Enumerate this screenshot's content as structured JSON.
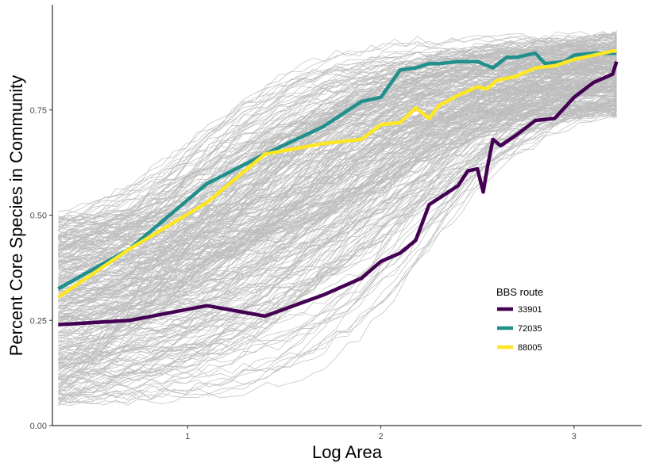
{
  "chart_data": {
    "type": "line",
    "title": "",
    "xlabel": "Log Area",
    "ylabel": "Percent Core Species in Community",
    "xlim": [
      0.3,
      3.35
    ],
    "ylim": [
      0.0,
      1.0
    ],
    "x_ticks": [
      1,
      2,
      3
    ],
    "x_tick_labels": [
      "1",
      "2",
      "3"
    ],
    "y_ticks": [
      0.0,
      0.25,
      0.5,
      0.75
    ],
    "y_tick_labels": [
      "0.00",
      "0.25",
      "0.50",
      "0.75"
    ],
    "grid": false,
    "legend": {
      "title": "BBS route",
      "position": "lower-right"
    },
    "background_lines": {
      "color": "#bdbdbd",
      "description_count": 300
    },
    "series": [
      {
        "name": "33901",
        "color": "#440154",
        "x": [
          0.33,
          0.7,
          1.1,
          1.4,
          1.7,
          1.9,
          2.0,
          2.1,
          2.18,
          2.25,
          2.3,
          2.4,
          2.45,
          2.5,
          2.53,
          2.55,
          2.58,
          2.62,
          2.7,
          2.8,
          2.9,
          3.0,
          3.1,
          3.2,
          3.22
        ],
        "y": [
          0.24,
          0.25,
          0.285,
          0.26,
          0.31,
          0.35,
          0.39,
          0.41,
          0.44,
          0.525,
          0.54,
          0.57,
          0.605,
          0.61,
          0.555,
          0.61,
          0.68,
          0.665,
          0.69,
          0.725,
          0.73,
          0.78,
          0.815,
          0.835,
          0.865
        ]
      },
      {
        "name": "72035",
        "color": "#21908C",
        "x": [
          0.33,
          0.7,
          1.1,
          1.4,
          1.7,
          1.9,
          2.0,
          2.1,
          2.18,
          2.25,
          2.3,
          2.4,
          2.5,
          2.58,
          2.65,
          2.7,
          2.8,
          2.85,
          2.95,
          3.0,
          3.1,
          3.2,
          3.22
        ],
        "y": [
          0.325,
          0.42,
          0.575,
          0.645,
          0.71,
          0.77,
          0.78,
          0.845,
          0.85,
          0.86,
          0.86,
          0.865,
          0.865,
          0.85,
          0.875,
          0.875,
          0.885,
          0.86,
          0.865,
          0.88,
          0.885,
          0.885,
          0.885
        ]
      },
      {
        "name": "88005",
        "color": "#FDE725",
        "x": [
          0.33,
          0.7,
          1.1,
          1.4,
          1.7,
          1.9,
          2.0,
          2.1,
          2.18,
          2.25,
          2.3,
          2.4,
          2.5,
          2.55,
          2.6,
          2.7,
          2.8,
          2.9,
          3.0,
          3.1,
          3.2,
          3.22
        ],
        "y": [
          0.305,
          0.42,
          0.53,
          0.645,
          0.67,
          0.68,
          0.715,
          0.72,
          0.755,
          0.73,
          0.76,
          0.785,
          0.805,
          0.8,
          0.82,
          0.83,
          0.85,
          0.855,
          0.87,
          0.88,
          0.89,
          0.89
        ]
      }
    ]
  }
}
